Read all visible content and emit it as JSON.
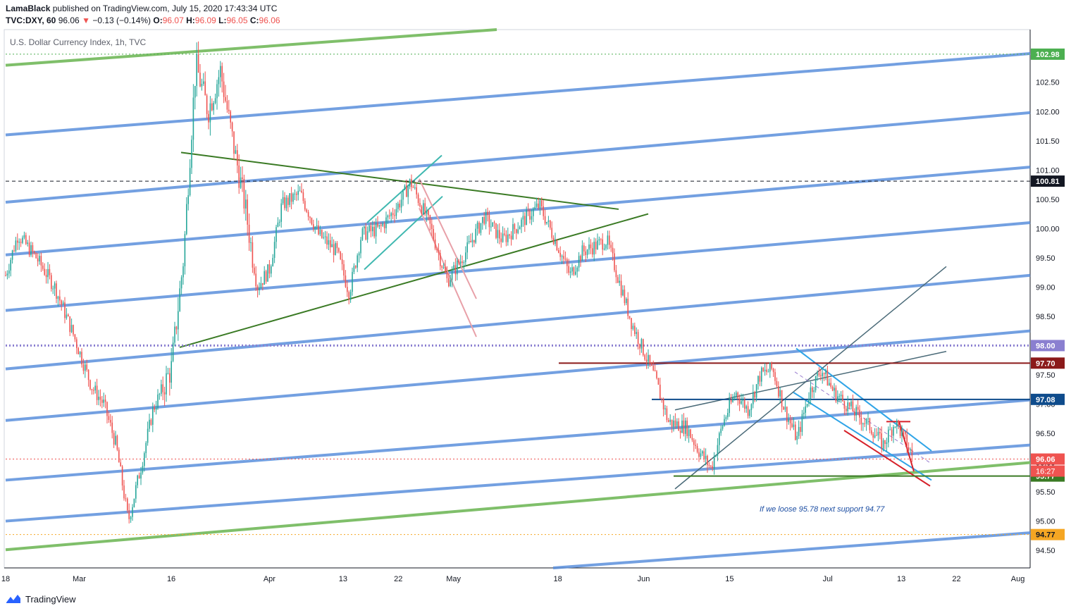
{
  "header": {
    "publisher": "LamaBlack",
    "published_text": "published on TradingView.com, July 15, 2020 17:43:34 UTC",
    "symbol": "TVC:DXY, 60",
    "last": "96.06",
    "arrow": "▼",
    "change": "−0.13 (−0.14%)",
    "o_label": "O:",
    "o_value": "96.07",
    "h_label": "H:",
    "h_value": "96.09",
    "l_label": "L:",
    "l_value": "96.05",
    "c_label": "C:",
    "c_value": "96.06"
  },
  "footer": {
    "brand": "TradingView"
  },
  "colors": {
    "blue_channel": "#5b8fdc",
    "green_line": "#7fbf6a",
    "dark_green": "#3a7a24",
    "teal": "#3fb8b0",
    "pink": "#e8a0a8",
    "candle_up": "#26a69a",
    "candle_down": "#ef5350",
    "purple": "#8a7fd0",
    "maroon": "#8b1a1a",
    "navy": "#0f4c8c",
    "orange": "#f5a623"
  },
  "chart_data": {
    "type": "candlestick",
    "title": "U.S. Dollar Currency Index, 1h, TVC",
    "y_axis": {
      "range": [
        94.2,
        103.4
      ],
      "ticks": [
        "94.50",
        "95.00",
        "95.50",
        "96.00",
        "96.50",
        "97.00",
        "97.50",
        "98.00",
        "98.50",
        "99.00",
        "99.50",
        "100.00",
        "100.50",
        "101.00",
        "101.50",
        "102.00",
        "102.50",
        "103.00"
      ]
    },
    "x_axis": {
      "range": [
        "2020-02-18",
        "2020-08-03"
      ],
      "tick_labels": [
        {
          "label": "18",
          "date": "2020-02-18"
        },
        {
          "label": "Mar",
          "date": "2020-03-01"
        },
        {
          "label": "16",
          "date": "2020-03-16"
        },
        {
          "label": "Apr",
          "date": "2020-04-01"
        },
        {
          "label": "13",
          "date": "2020-04-13"
        },
        {
          "label": "22",
          "date": "2020-04-22"
        },
        {
          "label": "May",
          "date": "2020-05-01"
        },
        {
          "label": "18",
          "date": "2020-05-18"
        },
        {
          "label": "Jun",
          "date": "2020-06-01"
        },
        {
          "label": "15",
          "date": "2020-06-15"
        },
        {
          "label": "Jul",
          "date": "2020-07-01"
        },
        {
          "label": "13",
          "date": "2020-07-13"
        },
        {
          "label": "22",
          "date": "2020-07-22"
        },
        {
          "label": "Aug",
          "date": "2020-08-01"
        }
      ]
    },
    "price_path": [
      {
        "x": "2020-02-18",
        "y": 99.2
      },
      {
        "x": "2020-02-20",
        "y": 99.9
      },
      {
        "x": "2020-02-23",
        "y": 99.5
      },
      {
        "x": "2020-02-26",
        "y": 99.0
      },
      {
        "x": "2020-02-29",
        "y": 98.2
      },
      {
        "x": "2020-03-03",
        "y": 97.3
      },
      {
        "x": "2020-03-05",
        "y": 97.0
      },
      {
        "x": "2020-03-07",
        "y": 96.3
      },
      {
        "x": "2020-03-09",
        "y": 95.0
      },
      {
        "x": "2020-03-11",
        "y": 95.9
      },
      {
        "x": "2020-03-13",
        "y": 96.9
      },
      {
        "x": "2020-03-16",
        "y": 97.6
      },
      {
        "x": "2020-03-18",
        "y": 99.5
      },
      {
        "x": "2020-03-19",
        "y": 101.2
      },
      {
        "x": "2020-03-20",
        "y": 102.8
      },
      {
        "x": "2020-03-22",
        "y": 102.0
      },
      {
        "x": "2020-03-24",
        "y": 102.7
      },
      {
        "x": "2020-03-26",
        "y": 101.5
      },
      {
        "x": "2020-03-28",
        "y": 100.4
      },
      {
        "x": "2020-03-30",
        "y": 99.0
      },
      {
        "x": "2020-04-01",
        "y": 99.3
      },
      {
        "x": "2020-04-03",
        "y": 100.4
      },
      {
        "x": "2020-04-06",
        "y": 100.6
      },
      {
        "x": "2020-04-09",
        "y": 99.9
      },
      {
        "x": "2020-04-12",
        "y": 99.6
      },
      {
        "x": "2020-04-14",
        "y": 98.9
      },
      {
        "x": "2020-04-16",
        "y": 99.9
      },
      {
        "x": "2020-04-19",
        "y": 100.0
      },
      {
        "x": "2020-04-22",
        "y": 100.4
      },
      {
        "x": "2020-04-24",
        "y": 100.8
      },
      {
        "x": "2020-04-27",
        "y": 100.1
      },
      {
        "x": "2020-04-30",
        "y": 99.1
      },
      {
        "x": "2020-05-03",
        "y": 99.6
      },
      {
        "x": "2020-05-06",
        "y": 100.2
      },
      {
        "x": "2020-05-09",
        "y": 99.8
      },
      {
        "x": "2020-05-12",
        "y": 100.1
      },
      {
        "x": "2020-05-15",
        "y": 100.4
      },
      {
        "x": "2020-05-18",
        "y": 99.7
      },
      {
        "x": "2020-05-20",
        "y": 99.2
      },
      {
        "x": "2020-05-22",
        "y": 99.6
      },
      {
        "x": "2020-05-26",
        "y": 99.8
      },
      {
        "x": "2020-05-28",
        "y": 99.1
      },
      {
        "x": "2020-05-30",
        "y": 98.4
      },
      {
        "x": "2020-06-01",
        "y": 97.9
      },
      {
        "x": "2020-06-03",
        "y": 97.4
      },
      {
        "x": "2020-06-05",
        "y": 96.7
      },
      {
        "x": "2020-06-08",
        "y": 96.6
      },
      {
        "x": "2020-06-10",
        "y": 96.2
      },
      {
        "x": "2020-06-12",
        "y": 95.9
      },
      {
        "x": "2020-06-14",
        "y": 96.7
      },
      {
        "x": "2020-06-16",
        "y": 97.2
      },
      {
        "x": "2020-06-18",
        "y": 96.9
      },
      {
        "x": "2020-06-20",
        "y": 97.5
      },
      {
        "x": "2020-06-22",
        "y": 97.6
      },
      {
        "x": "2020-06-24",
        "y": 96.9
      },
      {
        "x": "2020-06-26",
        "y": 96.4
      },
      {
        "x": "2020-06-28",
        "y": 97.2
      },
      {
        "x": "2020-06-30",
        "y": 97.6
      },
      {
        "x": "2020-07-02",
        "y": 97.2
      },
      {
        "x": "2020-07-05",
        "y": 96.9
      },
      {
        "x": "2020-07-08",
        "y": 96.6
      },
      {
        "x": "2020-07-10",
        "y": 96.3
      },
      {
        "x": "2020-07-12",
        "y": 96.7
      },
      {
        "x": "2020-07-13",
        "y": 96.5
      },
      {
        "x": "2020-07-14",
        "y": 96.3
      },
      {
        "x": "2020-07-15",
        "y": 96.06
      }
    ],
    "horizontal_levels": [
      {
        "value": 102.98,
        "label": "102.98",
        "style": "dotted",
        "color": "#4caf50"
      },
      {
        "value": 100.81,
        "label": "100.81",
        "style": "dashed",
        "color": "#131722"
      },
      {
        "value": 98.0,
        "label": "98.00",
        "style": "dotted",
        "color": "#8a7fd0"
      },
      {
        "value": 97.7,
        "label": "97.70",
        "style": "solid",
        "color": "#8b1a1a"
      },
      {
        "value": 97.08,
        "label": "97.08",
        "style": "solid",
        "color": "#0f4c8c"
      },
      {
        "value": 96.06,
        "label": "96.06",
        "style": "dotted",
        "color": "#ef5350"
      },
      {
        "value": 95.77,
        "label": "95.77",
        "style": "solid",
        "color": "#3a7a24"
      },
      {
        "value": 94.77,
        "label": "94.77",
        "style": "dotted",
        "color": "#f5a623"
      }
    ],
    "countdown_label": "16:27",
    "annotation": "If we loose 95.78 next support 94.77"
  }
}
